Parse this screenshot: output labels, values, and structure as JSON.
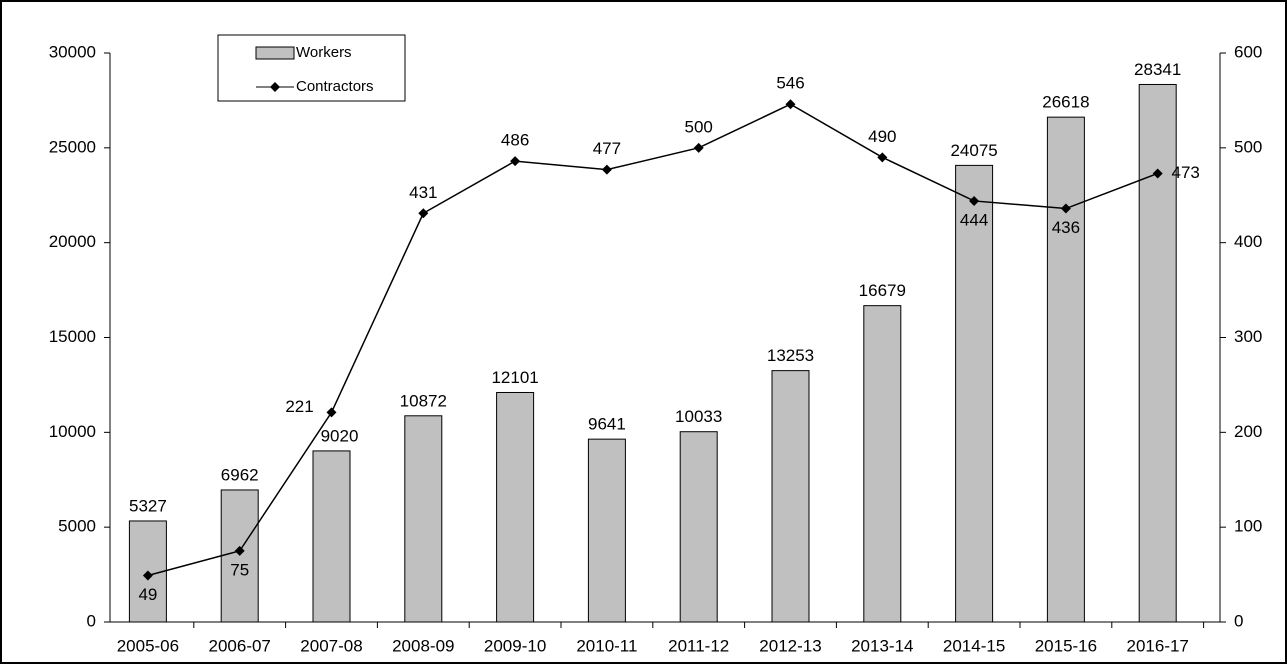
{
  "chart_data": {
    "type": "bar-line",
    "categories": [
      "2005-06",
      "2006-07",
      "2007-08",
      "2008-09",
      "2009-10",
      "2010-11",
      "2011-12",
      "2012-13",
      "2013-14",
      "2014-15",
      "2015-16",
      "2016-17"
    ],
    "series": [
      {
        "name": "Workers",
        "type": "bar",
        "color": "#c0c0c0",
        "values": [
          5327,
          6962,
          9020,
          10872,
          12101,
          9641,
          10033,
          13253,
          16679,
          24075,
          26618,
          28341
        ]
      },
      {
        "name": "Contractors",
        "type": "line",
        "axis": "y2",
        "color": "#000000",
        "values": [
          49,
          75,
          221,
          431,
          486,
          477,
          500,
          546,
          490,
          444,
          436,
          473
        ]
      }
    ],
    "ylim": [
      0,
      30000
    ],
    "yticks": [
      0,
      5000,
      10000,
      15000,
      20000,
      25000,
      30000
    ],
    "y2lim": [
      0,
      600
    ],
    "y2ticks": [
      0,
      100,
      200,
      300,
      400,
      500,
      600
    ],
    "grid": false,
    "legend": "top-left"
  }
}
